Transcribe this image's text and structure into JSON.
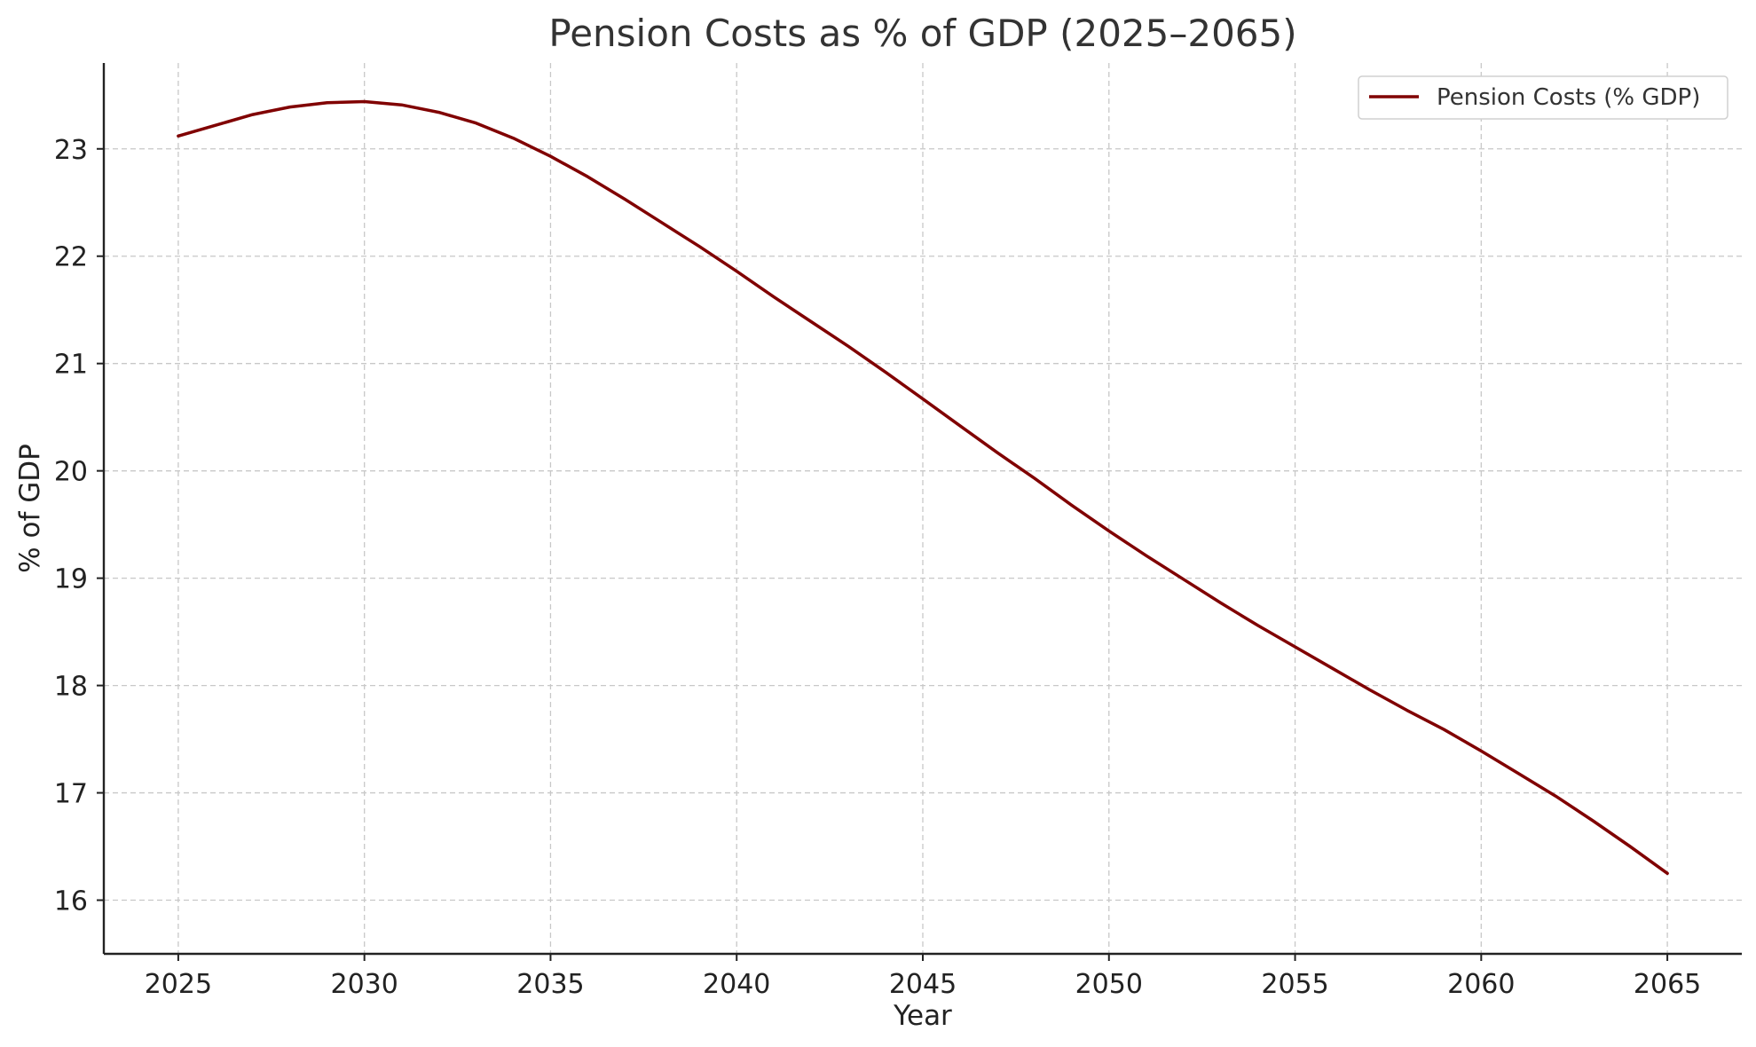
{
  "chart_data": {
    "type": "line",
    "title": "Pension Costs as % of GDP (2025–2065)",
    "xlabel": "Year",
    "ylabel": "% of GDP",
    "xlim": [
      2023.0,
      2067.0
    ],
    "ylim": [
      15.5,
      23.8
    ],
    "xticks": [
      2025,
      2030,
      2035,
      2040,
      2045,
      2050,
      2055,
      2060,
      2065
    ],
    "yticks": [
      16,
      17,
      18,
      19,
      20,
      21,
      22,
      23
    ],
    "grid": true,
    "legend_position": "top-right",
    "series": [
      {
        "name": "Pension Costs (% GDP)",
        "color": "#800000",
        "x": [
          2025,
          2026,
          2027,
          2028,
          2029,
          2030,
          2031,
          2032,
          2033,
          2034,
          2035,
          2036,
          2037,
          2038,
          2039,
          2040,
          2041,
          2042,
          2043,
          2044,
          2045,
          2046,
          2047,
          2048,
          2049,
          2050,
          2051,
          2052,
          2053,
          2054,
          2055,
          2056,
          2057,
          2058,
          2059,
          2060,
          2061,
          2062,
          2063,
          2064,
          2065
        ],
        "y": [
          23.12,
          23.22,
          23.32,
          23.39,
          23.43,
          23.44,
          23.41,
          23.34,
          23.24,
          23.1,
          22.93,
          22.74,
          22.53,
          22.31,
          22.09,
          21.86,
          21.62,
          21.39,
          21.16,
          20.92,
          20.67,
          20.42,
          20.17,
          19.93,
          19.68,
          19.44,
          19.21,
          18.99,
          18.77,
          18.56,
          18.36,
          18.16,
          17.96,
          17.77,
          17.59,
          17.39,
          17.18,
          16.97,
          16.74,
          16.5,
          16.25
        ]
      }
    ]
  }
}
